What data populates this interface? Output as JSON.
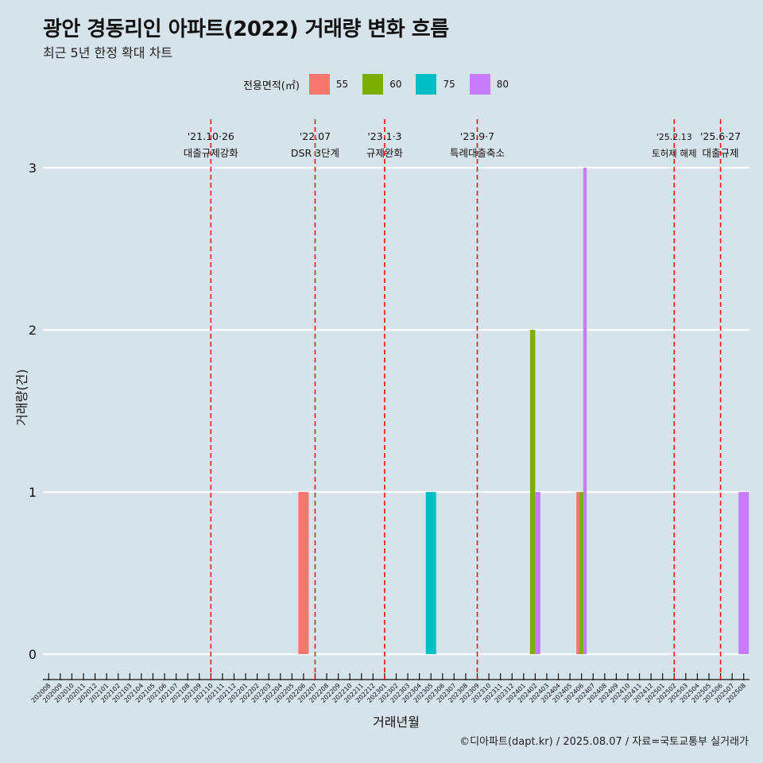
{
  "title": "광안 경동리인 아파트(2022) 거래량 변화 흐름",
  "subtitle": "최근 5년 한정 확대 차트",
  "legend": {
    "title": "전용면적(㎡)",
    "items": [
      {
        "label": "55",
        "color": "#F8766D"
      },
      {
        "label": "60",
        "color": "#7CAE00"
      },
      {
        "label": "75",
        "color": "#00BFC4"
      },
      {
        "label": "80",
        "color": "#C77CFF"
      }
    ]
  },
  "caption": "©디아파트(dapt.kr) / 2025.08.07 / 자료=국토교통부 실거래가",
  "chart_data": {
    "type": "bar",
    "xlabel": "거래년월",
    "ylabel": "거래량(건)",
    "ylim": [
      0,
      3
    ],
    "y_ticks": [
      0,
      1,
      2,
      3
    ],
    "grid": true,
    "legend_position": "top",
    "categories": [
      "202008",
      "202009",
      "202010",
      "202011",
      "202012",
      "202101",
      "202102",
      "202103",
      "202104",
      "202105",
      "202106",
      "202107",
      "202108",
      "202109",
      "202110",
      "202111",
      "202112",
      "202201",
      "202202",
      "202203",
      "202204",
      "202205",
      "202206",
      "202207",
      "202208",
      "202209",
      "202210",
      "202211",
      "202212",
      "202301",
      "202302",
      "202303",
      "202304",
      "202305",
      "202306",
      "202307",
      "202308",
      "202309",
      "202310",
      "202311",
      "202312",
      "202401",
      "202402",
      "202403",
      "202404",
      "202405",
      "202406",
      "202407",
      "202408",
      "202409",
      "202410",
      "202411",
      "202412",
      "202501",
      "202502",
      "202503",
      "202504",
      "202505",
      "202506",
      "202507",
      "202508"
    ],
    "bars": [
      {
        "month": "202206",
        "series": "55",
        "value": 1
      },
      {
        "month": "202305",
        "series": "75",
        "value": 1
      },
      {
        "month": "202402",
        "series": "60",
        "value": 2
      },
      {
        "month": "202402",
        "series": "80",
        "value": 1
      },
      {
        "month": "202406",
        "series": "55",
        "value": 1
      },
      {
        "month": "202406",
        "series": "60",
        "value": 1
      },
      {
        "month": "202406",
        "series": "80",
        "value": 3
      },
      {
        "month": "202508",
        "series": "80",
        "value": 1
      }
    ],
    "events": [
      {
        "month": "202110",
        "date": "'21.10·26",
        "label": "대출규제강화"
      },
      {
        "month": "202207",
        "date": "'22.07",
        "label": "DSR 3단계"
      },
      {
        "month": "202301",
        "date": "'23.1·3",
        "label": "규제완화"
      },
      {
        "month": "202309",
        "date": "'23.9·7",
        "label": "특례대출축소"
      },
      {
        "month": "202502",
        "date": "'25.2.13",
        "label": "토허제 해제"
      },
      {
        "month": "202506",
        "date": "'25.6·27",
        "label": "대출규제"
      }
    ]
  }
}
